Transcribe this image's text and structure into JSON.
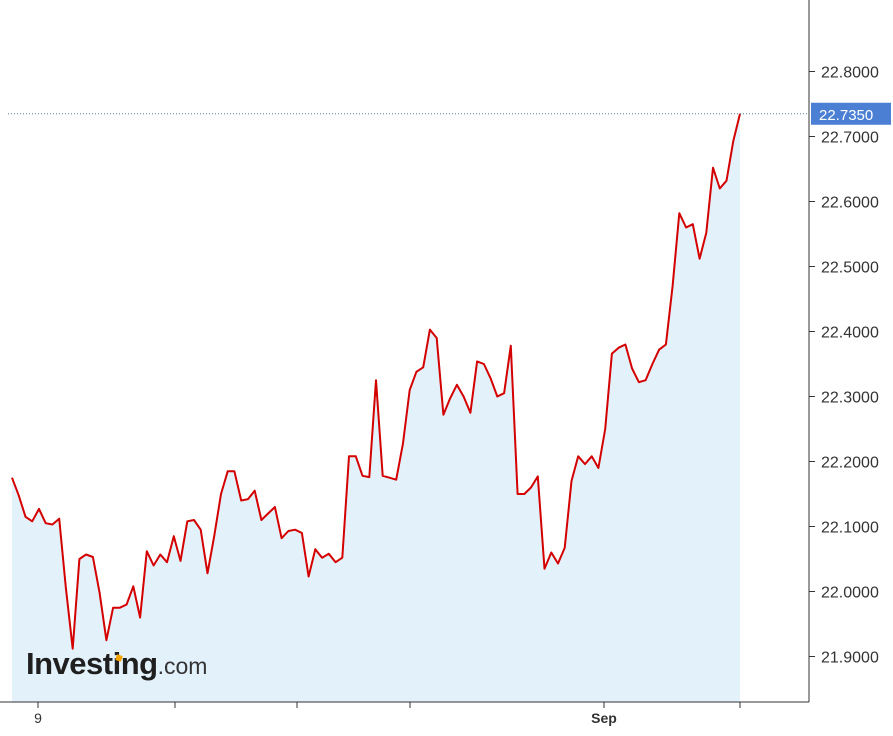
{
  "chart_data": {
    "type": "area",
    "title": "",
    "xlabel": "",
    "ylabel": "",
    "x_tick_labels": [
      "9",
      "",
      "",
      "",
      "Sep",
      ""
    ],
    "y_ticks": [
      21.9,
      22.0,
      22.1,
      22.2,
      22.3,
      22.4,
      22.5,
      22.6,
      22.7,
      22.8
    ],
    "y_tick_labels": [
      "21.9000",
      "22.0000",
      "22.1000",
      "22.2000",
      "22.3000",
      "22.4000",
      "22.5000",
      "22.6000",
      "22.7000",
      "22.8000"
    ],
    "ylim": [
      21.83,
      22.91
    ],
    "grid": false,
    "last_value_label": "22.7350",
    "series": [
      {
        "values": [
          22.175,
          22.148,
          22.115,
          22.108,
          22.127,
          22.105,
          22.103,
          22.112,
          22.005,
          21.912,
          22.05,
          22.057,
          22.053,
          21.998,
          21.925,
          21.975,
          21.975,
          21.98,
          22.008,
          21.96,
          22.062,
          22.04,
          22.057,
          22.045,
          22.085,
          22.047,
          22.108,
          22.11,
          22.095,
          22.028,
          22.085,
          22.15,
          22.185,
          22.185,
          22.14,
          22.142,
          22.155,
          22.11,
          22.12,
          22.13,
          22.082,
          22.093,
          22.095,
          22.09,
          22.023,
          22.065,
          22.052,
          22.058,
          22.045,
          22.052,
          22.208,
          22.208,
          22.178,
          22.176,
          22.325,
          22.178,
          22.175,
          22.172,
          22.228,
          22.31,
          22.338,
          22.345,
          22.403,
          22.39,
          22.272,
          22.297,
          22.318,
          22.3,
          22.275,
          22.354,
          22.35,
          22.328,
          22.3,
          22.305,
          22.378,
          22.15,
          22.15,
          22.16,
          22.177,
          22.035,
          22.06,
          22.043,
          22.067,
          22.17,
          22.208,
          22.196,
          22.208,
          22.19,
          22.25,
          22.366,
          22.375,
          22.38,
          22.343,
          22.322,
          22.325,
          22.35,
          22.372,
          22.38,
          22.47,
          22.582,
          22.56,
          22.565,
          22.512,
          22.552,
          22.652,
          22.62,
          22.632,
          22.693,
          22.735
        ]
      }
    ],
    "colors": {
      "line": "#d40000",
      "area_fill": "#e3f1fb",
      "last_value_badge": "#4a7fd4",
      "axis": "#333333",
      "dotted_line": "#5b7aa8"
    }
  },
  "logo": {
    "main": "Investing",
    "suffix": ".com"
  }
}
